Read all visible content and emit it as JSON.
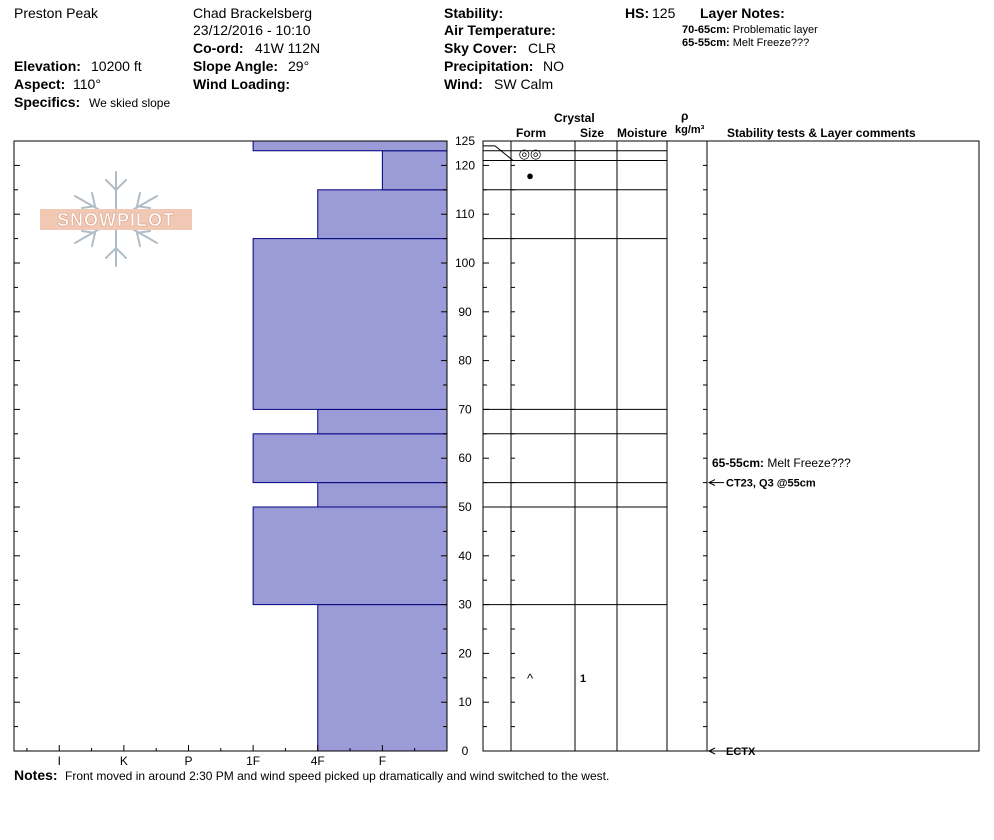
{
  "header": {
    "location": "Preston Peak",
    "observer": "Chad Brackelsberg",
    "datetime": "23/12/2016 - 10:10",
    "coord_label": "Co-ord:",
    "coord_value": "41W 112N",
    "elevation_label": "Elevation:",
    "elevation_value": "10200 ft",
    "aspect_label": "Aspect:",
    "aspect_value": "110°",
    "specifics_label": "Specifics:",
    "specifics_value": "We skied slope",
    "slope_label": "Slope Angle:",
    "slope_value": "29°",
    "wind_loading_label": "Wind Loading:",
    "wind_loading_value": "",
    "stability_label": "Stability:",
    "stability_value": "",
    "air_temp_label": "Air Temperature:",
    "air_temp_value": "",
    "sky_label": "Sky Cover:",
    "sky_value": "CLR",
    "precip_label": "Precipitation:",
    "precip_value": "NO",
    "wind_label": "Wind:",
    "wind_value": "SW Calm",
    "hs_label": "HS:",
    "hs_value": "125",
    "layer_notes_label": "Layer Notes:",
    "layer_notes": [
      {
        "range": "70-65cm:",
        "text": "Problematic layer"
      },
      {
        "range": "65-55cm:",
        "text": "Melt Freeze???"
      }
    ]
  },
  "columns": {
    "crystal": "Crystal",
    "form": "Form",
    "size": "Size",
    "moisture": "Moisture",
    "rho": "ρ",
    "density_unit": "kg/m³",
    "stability_tests": "Stability tests & Layer comments"
  },
  "logo_text": "SNOWPILOT",
  "chart_data": {
    "type": "bar",
    "orientation": "horizontal",
    "ylim": [
      0,
      125
    ],
    "y_ticks": [
      0,
      10,
      20,
      30,
      40,
      50,
      60,
      70,
      80,
      90,
      100,
      110,
      120,
      125
    ],
    "hardness_scale": [
      "F",
      "4F",
      "1F",
      "P",
      "K",
      "I"
    ],
    "hardness_levels": [
      {
        "label": "I",
        "value": 6
      },
      {
        "label": "K",
        "value": 5
      },
      {
        "label": "P",
        "value": 4
      },
      {
        "label": "1F",
        "value": 3
      },
      {
        "label": "4F",
        "value": 2
      },
      {
        "label": "F",
        "value": 1
      }
    ],
    "hardness_max": 6.7,
    "layers": [
      {
        "bottom": 0,
        "top": 30,
        "hardness": "4F"
      },
      {
        "bottom": 30,
        "top": 50,
        "hardness": "1F"
      },
      {
        "bottom": 50,
        "top": 55,
        "hardness": "4F"
      },
      {
        "bottom": 55,
        "top": 65,
        "hardness": "1F"
      },
      {
        "bottom": 65,
        "top": 70,
        "hardness": "4F"
      },
      {
        "bottom": 70,
        "top": 105,
        "hardness": "1F"
      },
      {
        "bottom": 105,
        "top": 115,
        "hardness": "4F"
      },
      {
        "bottom": 115,
        "top": 123,
        "hardness": "F"
      },
      {
        "bottom": 123,
        "top": 125,
        "hardness": "1F"
      }
    ],
    "layer_boundaries": [
      30,
      50,
      55,
      65,
      70,
      105,
      115,
      121,
      123
    ],
    "crystal_marks": [
      {
        "depth": 15,
        "form": "^",
        "size": "1"
      },
      {
        "depth": 118,
        "form": "●",
        "size": ""
      },
      {
        "depth": 122.5,
        "form": "◎◎",
        "size": ""
      }
    ],
    "comments": [
      {
        "depth": 59,
        "label": "65-55cm:",
        "text": "Melt Freeze???",
        "arrow": false
      },
      {
        "depth": 55,
        "label": "",
        "text": "CT23, Q3 @55cm",
        "arrow": true
      },
      {
        "depth": 0,
        "label": "",
        "text": "ECTX",
        "arrow": true
      }
    ],
    "colors": {
      "bar": "#9b9bd7",
      "bar_edge": "#000080"
    }
  },
  "notes_label": "Notes:",
  "notes_value": "Front moved in around 2:30 PM and wind speed picked up dramatically and wind switched to the west."
}
